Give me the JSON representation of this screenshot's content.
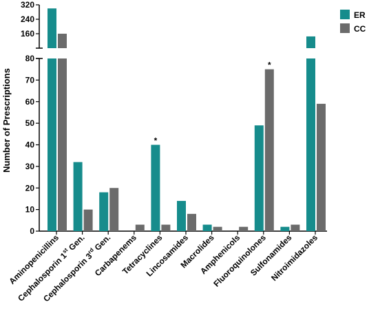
{
  "chart_data": {
    "type": "bar",
    "ylabel": "Number of Prescriptions",
    "categories": [
      "Aminopenicillins",
      "Cephalosporin 1st Gen.",
      "Cephalosporin 3rd Gen.",
      "Carbapenems",
      "Tetracyclines",
      "Lincosamides",
      "Macrolides",
      "Amphenicols",
      "Fluoroquinolones",
      "Sulfonamides",
      "Nitroimidazoles"
    ],
    "category_label_parts": [
      [
        "Aminopenicillins"
      ],
      [
        "Cephalosporin 1",
        "st",
        " Gen."
      ],
      [
        "Cephalosporin 3",
        "rd",
        " Gen."
      ],
      [
        "Carbapenems"
      ],
      [
        "Tetracyclines"
      ],
      [
        "Lincosamides"
      ],
      [
        "Macrolides"
      ],
      [
        "Amphenicols"
      ],
      [
        "Fluoroquinolones"
      ],
      [
        "Sulfonamides"
      ],
      [
        "Nitroimidazoles"
      ]
    ],
    "series": [
      {
        "name": "ER",
        "color": "#168c8c",
        "values": [
          300,
          32,
          18,
          0,
          40,
          14,
          3,
          0,
          49,
          2,
          145
        ]
      },
      {
        "name": "CC",
        "color": "#6b6b6b",
        "values": [
          160,
          10,
          20,
          3,
          3,
          8,
          2,
          2,
          75,
          3,
          59
        ]
      }
    ],
    "y_axis": {
      "broken": true,
      "lower_range": [
        0,
        80
      ],
      "lower_ticks": [
        0,
        10,
        20,
        30,
        40,
        50,
        60,
        70,
        80
      ],
      "upper_ticks": [
        160,
        240,
        320
      ]
    },
    "annotations": [
      {
        "category": "Tetracyclines",
        "series": "ER",
        "text": "*"
      },
      {
        "category": "Fluoroquinolones",
        "series": "CC",
        "text": "*"
      }
    ],
    "legend": {
      "position": "top-right",
      "entries": [
        "ER",
        "CC"
      ]
    },
    "grid": false
  }
}
